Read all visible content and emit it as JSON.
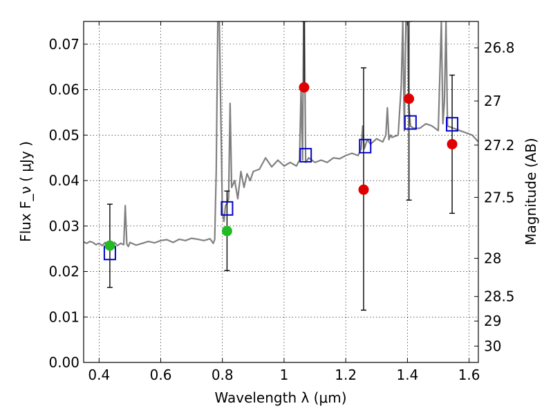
{
  "chart_data": {
    "type": "scatter",
    "xlabel": "Wavelength  λ (μm)",
    "ylabel": "Flux  F_ν  ( μJy )",
    "ylabel_right": "Magnitude (AB)",
    "xlim": [
      0.35,
      1.63
    ],
    "ylim": [
      0.0,
      0.075
    ],
    "grid": true,
    "x_ticks": [
      0.4,
      0.6,
      0.8,
      1.0,
      1.2,
      1.4,
      1.6
    ],
    "x_tick_labels": [
      "0.4",
      "0.6",
      "0.8",
      "1",
      "1.2",
      "1.4",
      "1.6"
    ],
    "y_ticks": [
      0.0,
      0.01,
      0.02,
      0.03,
      0.04,
      0.05,
      0.06,
      0.07
    ],
    "y_tick_labels": [
      "0.00",
      "0.01",
      "0.02",
      "0.03",
      "0.04",
      "0.05",
      "0.06",
      "0.07"
    ],
    "right_ticks": [
      {
        "label": "26.8",
        "flux": 0.0692
      },
      {
        "label": "27",
        "flux": 0.0575
      },
      {
        "label": "27.2",
        "flux": 0.0478
      },
      {
        "label": "27.5",
        "flux": 0.0363
      },
      {
        "label": "28",
        "flux": 0.0229
      },
      {
        "label": "28.5",
        "flux": 0.0145
      },
      {
        "label": "29",
        "flux": 0.0091
      },
      {
        "label": "30",
        "flux": 0.0036
      }
    ],
    "series": [
      {
        "kind": "line",
        "color": "#808080",
        "x": [
          0.35,
          0.36,
          0.37,
          0.38,
          0.39,
          0.4,
          0.41,
          0.42,
          0.43,
          0.44,
          0.45,
          0.46,
          0.47,
          0.48,
          0.485,
          0.49,
          0.495,
          0.5,
          0.52,
          0.54,
          0.56,
          0.58,
          0.6,
          0.62,
          0.64,
          0.66,
          0.68,
          0.7,
          0.72,
          0.74,
          0.76,
          0.77,
          0.775,
          0.78,
          0.785,
          0.79,
          0.8,
          0.805,
          0.81,
          0.815,
          0.82,
          0.825,
          0.83,
          0.84,
          0.85,
          0.86,
          0.87,
          0.88,
          0.89,
          0.9,
          0.92,
          0.94,
          0.96,
          0.98,
          1.0,
          1.02,
          1.04,
          1.05,
          1.055,
          1.06,
          1.063,
          1.066,
          1.07,
          1.08,
          1.1,
          1.12,
          1.14,
          1.16,
          1.18,
          1.2,
          1.22,
          1.24,
          1.25,
          1.255,
          1.26,
          1.27,
          1.28,
          1.3,
          1.32,
          1.33,
          1.335,
          1.34,
          1.345,
          1.35,
          1.37,
          1.38,
          1.385,
          1.39,
          1.395,
          1.4,
          1.405,
          1.41,
          1.42,
          1.44,
          1.46,
          1.48,
          1.5,
          1.51,
          1.515,
          1.52,
          1.525,
          1.53,
          1.55,
          1.57,
          1.59,
          1.61,
          1.63
        ],
        "values": [
          0.0265,
          0.0262,
          0.0266,
          0.0264,
          0.0259,
          0.0262,
          0.0257,
          0.0264,
          0.0261,
          0.0258,
          0.0264,
          0.0257,
          0.0262,
          0.0259,
          0.0345,
          0.026,
          0.0255,
          0.0264,
          0.0258,
          0.0262,
          0.0266,
          0.0263,
          0.0268,
          0.027,
          0.0264,
          0.0271,
          0.0268,
          0.0273,
          0.0271,
          0.0268,
          0.0272,
          0.0262,
          0.027,
          0.042,
          0.075,
          0.075,
          0.033,
          0.031,
          0.0345,
          0.035,
          0.036,
          0.057,
          0.0385,
          0.04,
          0.036,
          0.042,
          0.0385,
          0.0415,
          0.04,
          0.042,
          0.0425,
          0.045,
          0.043,
          0.0445,
          0.0432,
          0.044,
          0.0432,
          0.0445,
          0.06,
          0.0445,
          0.075,
          0.075,
          0.044,
          0.045,
          0.044,
          0.0445,
          0.044,
          0.045,
          0.0448,
          0.0455,
          0.046,
          0.0455,
          0.047,
          0.052,
          0.047,
          0.049,
          0.048,
          0.0492,
          0.0485,
          0.05,
          0.056,
          0.049,
          0.05,
          0.0495,
          0.05,
          0.061,
          0.075,
          0.051,
          0.075,
          0.075,
          0.056,
          0.052,
          0.0515,
          0.0515,
          0.0525,
          0.052,
          0.051,
          0.075,
          0.0525,
          0.0575,
          0.075,
          0.052,
          0.0515,
          0.051,
          0.0505,
          0.05,
          0.0485
        ]
      },
      {
        "kind": "open-squares",
        "color": "#0000cc",
        "x": [
          0.435,
          0.815,
          1.07,
          1.263,
          1.41,
          1.545
        ],
        "values": [
          0.024,
          0.0338,
          0.0455,
          0.0475,
          0.0527,
          0.0523
        ]
      },
      {
        "kind": "points-with-errors",
        "color": "#e00000",
        "x": [
          1.065,
          1.258,
          1.405,
          1.545
        ],
        "values": [
          0.0605,
          0.038,
          0.058,
          0.048
        ],
        "err_low": [
          0.0603,
          0.0115,
          0.0357,
          0.0328
        ],
        "err_high": [
          0.075,
          0.0648,
          0.075,
          0.0632
        ]
      },
      {
        "kind": "points-with-errors",
        "color": "#22bb22",
        "x": [
          0.435,
          0.815
        ],
        "values": [
          0.0257,
          0.0289
        ],
        "err_low": [
          0.0165,
          0.0202
        ],
        "err_high": [
          0.0348,
          0.0377
        ]
      }
    ]
  }
}
